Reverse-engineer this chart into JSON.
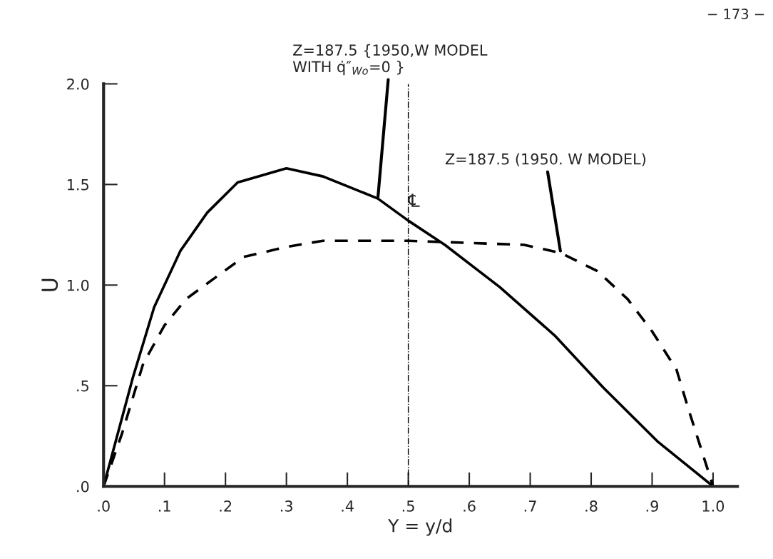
{
  "chart_data": {
    "type": "line",
    "xlabel": "Y = y/d",
    "ylabel": "U",
    "xlim": [
      0,
      1.04
    ],
    "ylim": [
      0,
      2.0
    ],
    "xticks": [
      {
        "value": 0,
        "label": ".0"
      },
      {
        "value": 0.1,
        "label": ".1"
      },
      {
        "value": 0.2,
        "label": ".2"
      },
      {
        "value": 0.3,
        "label": ".3"
      },
      {
        "value": 0.4,
        "label": ".4"
      },
      {
        "value": 0.5,
        "label": ".5"
      },
      {
        "value": 0.6,
        "label": ".6"
      },
      {
        "value": 0.7,
        "label": ".7"
      },
      {
        "value": 0.8,
        "label": ".8"
      },
      {
        "value": 0.9,
        "label": ".9"
      },
      {
        "value": 1.0,
        "label": "1.0"
      }
    ],
    "yticks": [
      {
        "value": 0,
        "label": ".0"
      },
      {
        "value": 0.5,
        "label": ".5"
      },
      {
        "value": 1.0,
        "label": "1.0"
      },
      {
        "value": 1.5,
        "label": "1.5"
      },
      {
        "value": 2.0,
        "label": "2.0"
      }
    ],
    "grid": false,
    "legend": false,
    "marker": "none",
    "series": [
      {
        "name": "Z=187.5 {1950,W MODEL\nWITH q̇″$_{Wo}$=0 }",
        "color": "#000000",
        "line_style": "solid",
        "x": [
          0,
          0.048,
          0.083,
          0.126,
          0.17,
          0.22,
          0.3,
          0.36,
          0.45,
          0.5,
          0.56,
          0.65,
          0.74,
          0.82,
          0.91,
          1.0
        ],
        "values": [
          0,
          0.54,
          0.89,
          1.17,
          1.36,
          1.51,
          1.58,
          1.54,
          1.43,
          1.32,
          1.2,
          0.99,
          0.75,
          0.49,
          0.22,
          0
        ]
      },
      {
        "name": "Z=187.5 (1950. W MODEL)",
        "color": "#000000",
        "line_style": "dashed",
        "x": [
          0,
          0.03,
          0.065,
          0.1,
          0.135,
          0.18,
          0.23,
          0.3,
          0.36,
          0.5,
          0.69,
          0.75,
          0.81,
          0.86,
          0.9,
          0.94,
          0.96,
          0.98,
          1.0
        ],
        "values": [
          0,
          0.26,
          0.61,
          0.8,
          0.93,
          1.03,
          1.14,
          1.19,
          1.22,
          1.22,
          1.2,
          1.16,
          1.07,
          0.93,
          0.77,
          0.58,
          0.38,
          0.19,
          0
        ]
      }
    ],
    "ref_lines": [
      {
        "axis": "x",
        "value": 0.5,
        "label": "℄",
        "line_style": "dashdot"
      }
    ],
    "annotations": [
      "− 173 −"
    ]
  }
}
